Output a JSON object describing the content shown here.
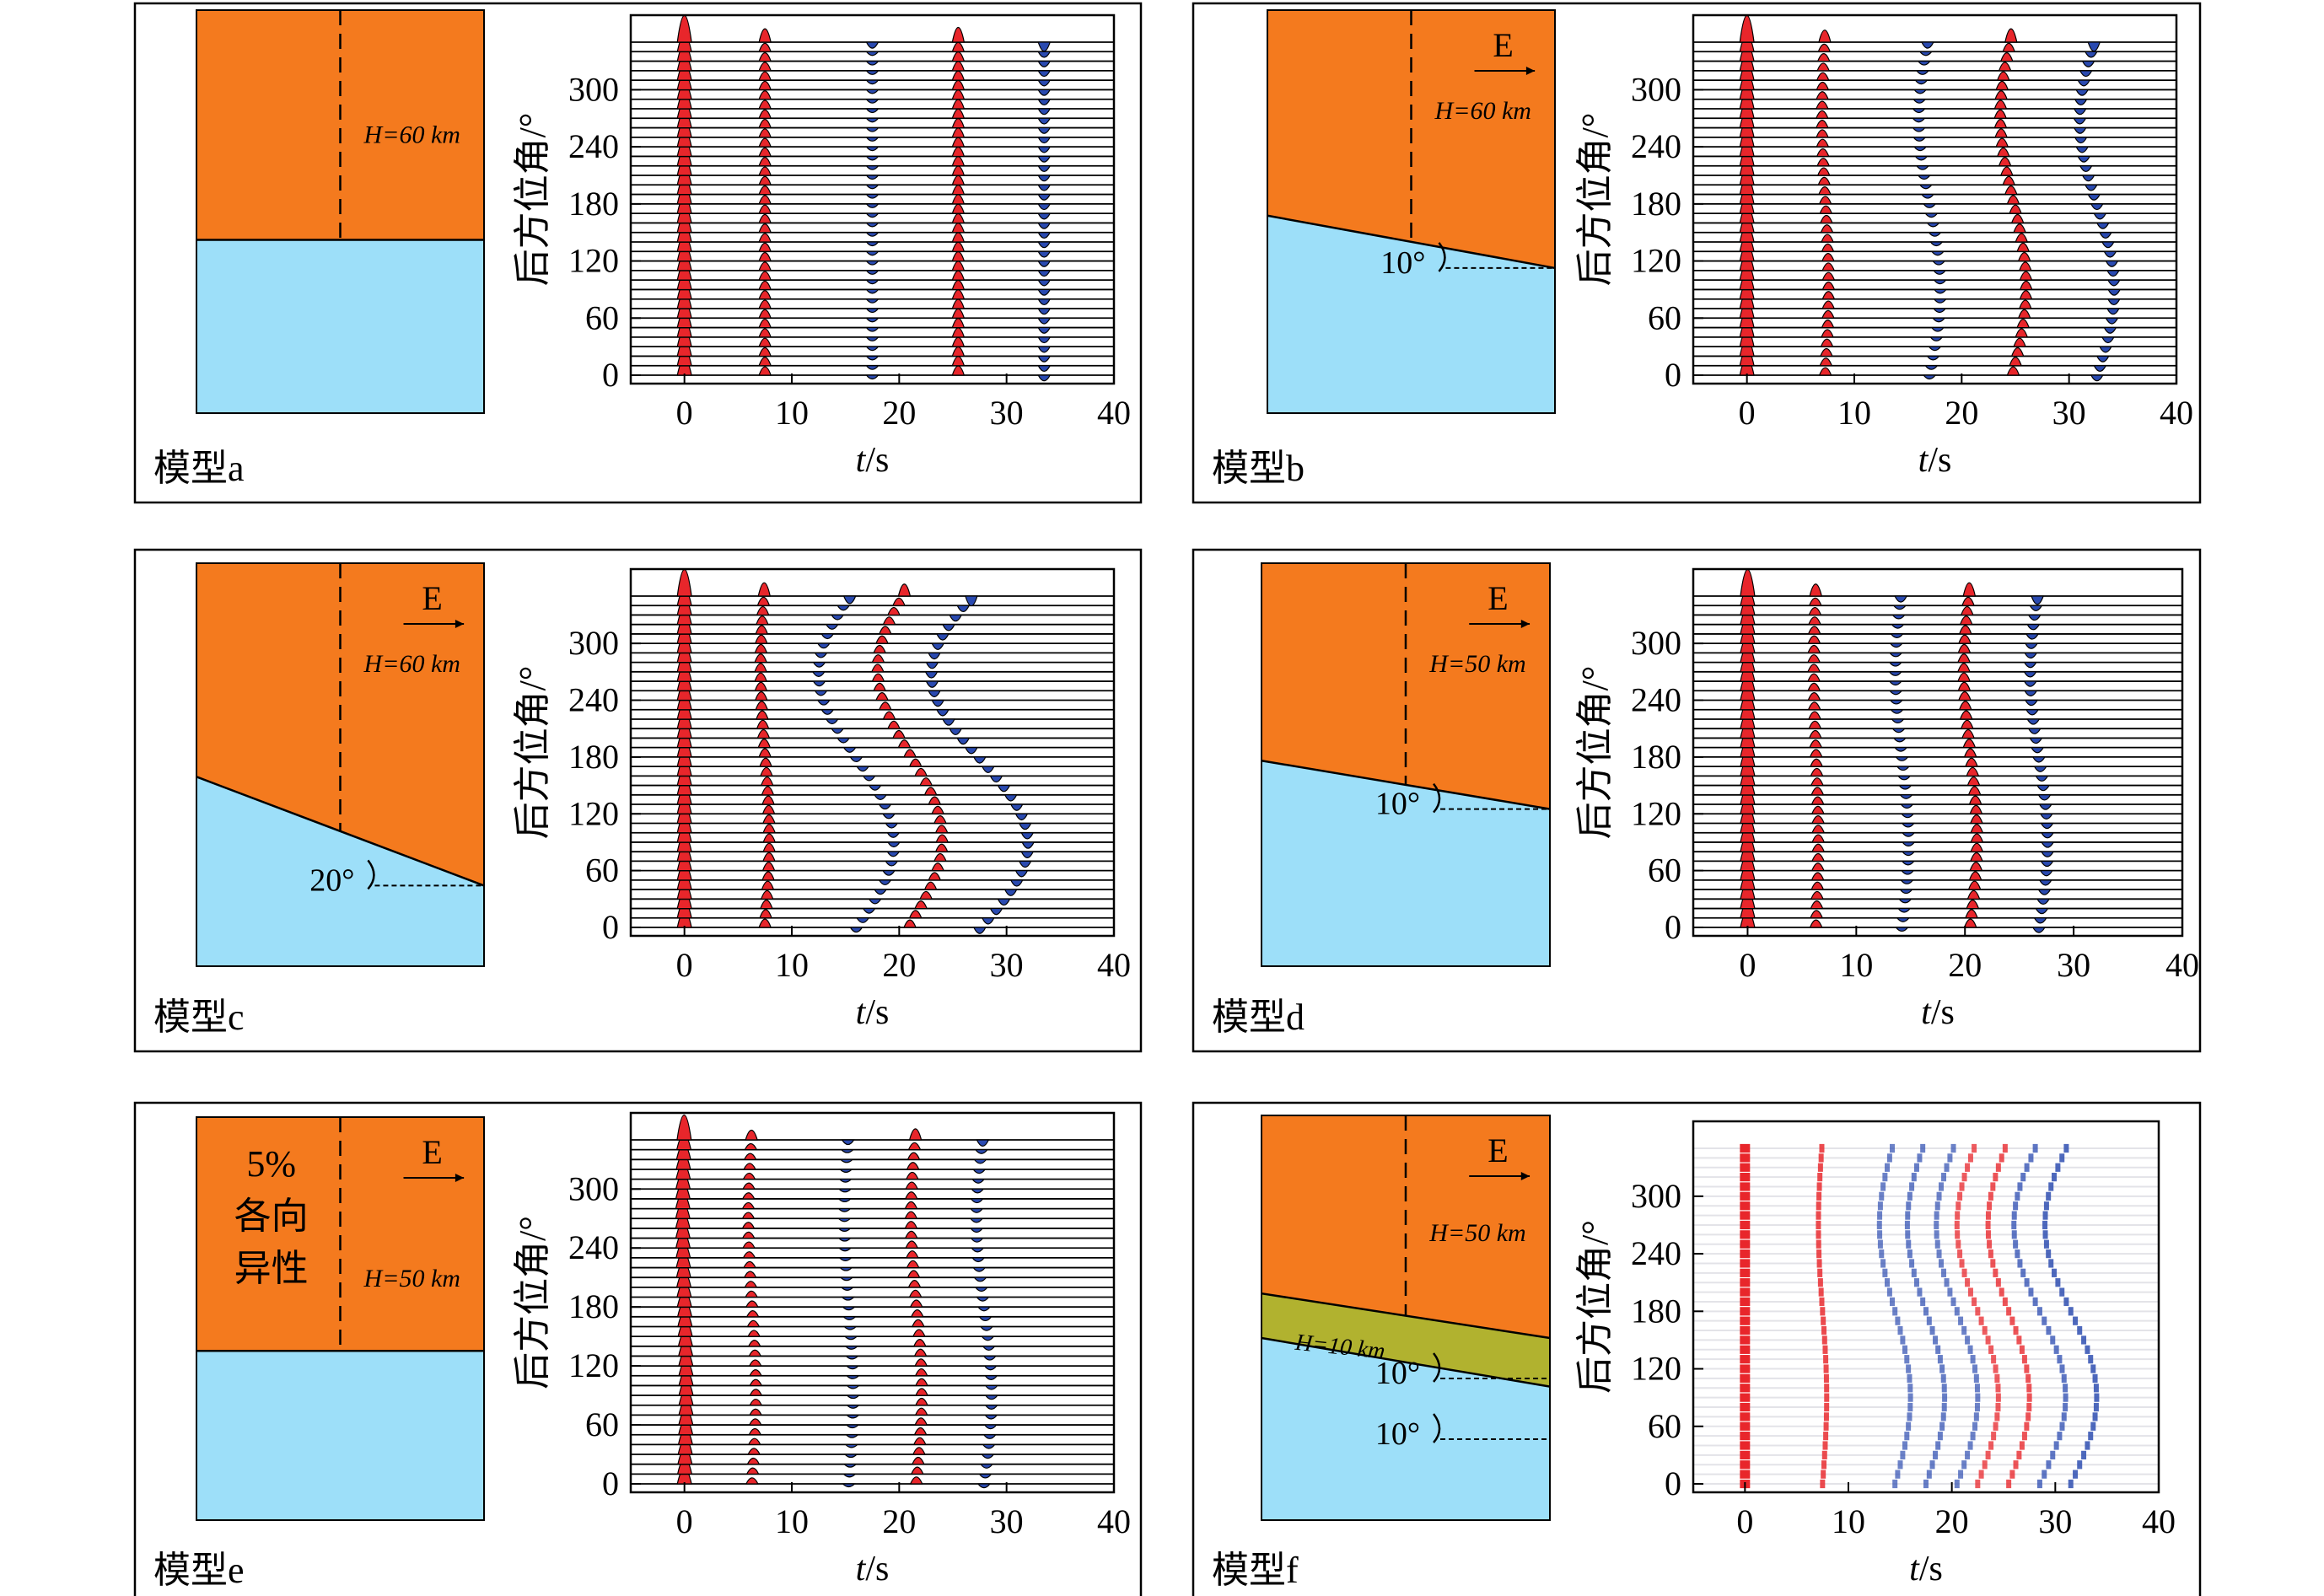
{
  "colors": {
    "crust": "#f47a1e",
    "mantle": "#9ddff9",
    "layer": "#b1b22f",
    "positive": "#e8262b",
    "negative": "#2a4ab0",
    "axis": "#000000"
  },
  "axis_text": {
    "ylabel": "后方位角/°",
    "xlabel_var": "t",
    "xlabel_unit": "/s",
    "x_ticks": [
      "0",
      "10",
      "20",
      "30",
      "40"
    ],
    "y_ticks": [
      "0",
      "60",
      "120",
      "180",
      "240",
      "300"
    ]
  },
  "panels": [
    {
      "label": "模型a",
      "model": {
        "show_east": false,
        "east_label": "",
        "thickness_label": "H=60 km",
        "angle_labels": [],
        "layer_label": "",
        "anisotropy_label": []
      },
      "chart_data": {
        "type": "receiver-function-gather",
        "x_range": [
          -5,
          40
        ],
        "y_range": [
          0,
          360
        ],
        "trace_step_deg": 10,
        "phases": [
          {
            "t": 0,
            "amp": 1.0,
            "sign": 1,
            "move": 0,
            "phase_deg": 0
          },
          {
            "t": 7.5,
            "amp": 0.5,
            "sign": 1,
            "move": 0,
            "phase_deg": 0
          },
          {
            "t": 17.5,
            "amp": 0.4,
            "sign": -1,
            "move": 0,
            "phase_deg": 0
          },
          {
            "t": 25.5,
            "amp": 0.55,
            "sign": 1,
            "move": 0,
            "phase_deg": 0
          },
          {
            "t": 33.5,
            "amp": 0.6,
            "sign": -1,
            "move": 0,
            "phase_deg": 0
          }
        ]
      }
    },
    {
      "label": "模型b",
      "model": {
        "show_east": true,
        "east_label": "E",
        "thickness_label": "H=60 km",
        "angle_labels": [
          "10°"
        ],
        "layer_label": "",
        "anisotropy_label": []
      },
      "chart_data": {
        "type": "receiver-function-gather",
        "x_range": [
          -5,
          40
        ],
        "y_range": [
          0,
          360
        ],
        "trace_step_deg": 10,
        "phases": [
          {
            "t": 0,
            "amp": 1.0,
            "sign": 1,
            "move": 0,
            "phase_deg": 0
          },
          {
            "t": 7.3,
            "amp": 0.45,
            "sign": 1,
            "move": 0.3,
            "phase_deg": 0
          },
          {
            "t": 17,
            "amp": 0.4,
            "sign": -1,
            "move": 1.0,
            "phase_deg": 0
          },
          {
            "t": 24.8,
            "amp": 0.5,
            "sign": 1,
            "move": 1.2,
            "phase_deg": 0
          },
          {
            "t": 32.6,
            "amp": 0.6,
            "sign": -1,
            "move": 1.6,
            "phase_deg": 0
          }
        ]
      }
    },
    {
      "label": "模型c",
      "model": {
        "show_east": true,
        "east_label": "E",
        "thickness_label": "H=60 km",
        "angle_labels": [
          "20°"
        ],
        "layer_label": "",
        "anisotropy_label": []
      },
      "chart_data": {
        "type": "receiver-function-gather",
        "x_range": [
          -5,
          40
        ],
        "y_range": [
          0,
          360
        ],
        "trace_step_deg": 10,
        "phases": [
          {
            "t": 0,
            "amp": 1.0,
            "sign": 1,
            "move": 0,
            "phase_deg": 0
          },
          {
            "t": 7.5,
            "amp": 0.5,
            "sign": 1,
            "move": 0.4,
            "phase_deg": 0
          },
          {
            "t": 16,
            "amp": 0.5,
            "sign": -1,
            "move": 3.5,
            "phase_deg": 0
          },
          {
            "t": 21,
            "amp": 0.45,
            "sign": 1,
            "move": 3.0,
            "phase_deg": 0
          },
          {
            "t": 27.5,
            "amp": 0.65,
            "sign": -1,
            "move": 4.5,
            "phase_deg": 0
          }
        ]
      }
    },
    {
      "label": "模型d",
      "model": {
        "show_east": true,
        "east_label": "E",
        "thickness_label": "H=50 km",
        "angle_labels": [
          "10°"
        ],
        "layer_label": "",
        "anisotropy_label": []
      },
      "chart_data": {
        "type": "receiver-function-gather",
        "x_range": [
          -5,
          40
        ],
        "y_range": [
          0,
          360
        ],
        "trace_step_deg": 10,
        "phases": [
          {
            "t": 0,
            "amp": 1.0,
            "sign": 1,
            "move": 0,
            "phase_deg": 0
          },
          {
            "t": 6.3,
            "amp": 0.45,
            "sign": 1,
            "move": 0.2,
            "phase_deg": 0
          },
          {
            "t": 14.2,
            "amp": 0.4,
            "sign": -1,
            "move": 0.6,
            "phase_deg": 0
          },
          {
            "t": 20.5,
            "amp": 0.5,
            "sign": 1,
            "move": 0.6,
            "phase_deg": 0
          },
          {
            "t": 26.8,
            "amp": 0.55,
            "sign": -1,
            "move": 0.8,
            "phase_deg": 0
          }
        ]
      }
    },
    {
      "label": "模型e",
      "model": {
        "show_east": true,
        "east_label": "E",
        "thickness_label": "H=50 km",
        "angle_labels": [],
        "layer_label": "",
        "anisotropy_label": [
          "5%",
          "各向",
          "异性"
        ]
      },
      "chart_data": {
        "type": "receiver-function-gather",
        "x_range": [
          -5,
          40
        ],
        "y_range": [
          0,
          360
        ],
        "trace_step_deg": 10,
        "phases": [
          {
            "t": 0,
            "amp": 0.9,
            "sign": 1,
            "move": 0.15,
            "phase_deg": 0
          },
          {
            "t": 6.3,
            "amp": 0.35,
            "sign": 1,
            "move": 0.35,
            "phase_deg": 0
          },
          {
            "t": 15.3,
            "amp": 0.3,
            "sign": -1,
            "move": 0.4,
            "phase_deg": 0
          },
          {
            "t": 21.6,
            "amp": 0.4,
            "sign": 1,
            "move": 0.5,
            "phase_deg": 0
          },
          {
            "t": 27.9,
            "amp": 0.4,
            "sign": -1,
            "move": 0.7,
            "phase_deg": 0
          }
        ]
      }
    },
    {
      "label": "模型f",
      "model": {
        "show_east": true,
        "east_label": "E",
        "thickness_label": "H=50 km",
        "angle_labels": [
          "10°",
          "10°"
        ],
        "layer_label": "H=10 km",
        "anisotropy_label": []
      },
      "chart_data": {
        "type": "receiver-function-image",
        "x_range": [
          -5,
          40
        ],
        "y_range": [
          0,
          360
        ],
        "trace_step_deg": 10,
        "phases": [
          {
            "t": 0,
            "amp": 1.0,
            "sign": 1,
            "move": 0,
            "phase_deg": 0
          },
          {
            "t": 7.5,
            "amp": 0.7,
            "sign": 1,
            "move": 0.4,
            "phase_deg": 0
          },
          {
            "t": 14.5,
            "amp": 0.35,
            "sign": -1,
            "move": 1.5,
            "phase_deg": 0
          },
          {
            "t": 17.5,
            "amp": 0.4,
            "sign": -1,
            "move": 1.8,
            "phase_deg": 0
          },
          {
            "t": 20.5,
            "amp": 0.35,
            "sign": -1,
            "move": 2.0,
            "phase_deg": 0
          },
          {
            "t": 22.5,
            "amp": 0.5,
            "sign": 1,
            "move": 2.0,
            "phase_deg": 0
          },
          {
            "t": 25.5,
            "amp": 0.6,
            "sign": 1,
            "move": 2.0,
            "phase_deg": 0
          },
          {
            "t": 28.5,
            "amp": 0.5,
            "sign": -1,
            "move": 2.5,
            "phase_deg": 0
          },
          {
            "t": 31.5,
            "amp": 0.7,
            "sign": -1,
            "move": 2.5,
            "phase_deg": 0
          }
        ]
      }
    }
  ]
}
